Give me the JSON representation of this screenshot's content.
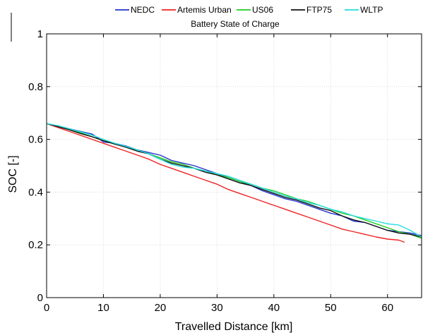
{
  "chart_data": {
    "type": "line",
    "title": "Battery State of Charge",
    "xlabel": "Travelled Distance [km]",
    "ylabel": "SOC [-]",
    "xlim": [
      0,
      66
    ],
    "ylim": [
      0,
      1
    ],
    "xticks": [
      "0",
      "10",
      "20",
      "30",
      "40",
      "50",
      "60"
    ],
    "yticks": [
      "0",
      "0.2",
      "0.4",
      "0.6",
      "0.8",
      "1"
    ],
    "xtick_values": [
      0,
      10,
      20,
      30,
      40,
      50,
      60
    ],
    "ytick_values": [
      0,
      0.2,
      0.4,
      0.6,
      0.8,
      1
    ],
    "grid": true,
    "legend_position": "top",
    "series": [
      {
        "name": "NEDC",
        "color": "#2233cc",
        "x": [
          0,
          2,
          4,
          6,
          8,
          10,
          12,
          14,
          16,
          18,
          20,
          22,
          24,
          26,
          28,
          30,
          32,
          34,
          36,
          38,
          40,
          42,
          44,
          46,
          48,
          50,
          52,
          54,
          56,
          58,
          60,
          62,
          64,
          66
        ],
        "y": [
          0.66,
          0.65,
          0.64,
          0.63,
          0.62,
          0.59,
          0.585,
          0.575,
          0.56,
          0.55,
          0.54,
          0.52,
          0.51,
          0.5,
          0.485,
          0.47,
          0.455,
          0.44,
          0.425,
          0.405,
          0.39,
          0.375,
          0.365,
          0.35,
          0.335,
          0.32,
          0.31,
          0.29,
          0.285,
          0.27,
          0.255,
          0.25,
          0.245,
          0.235
        ]
      },
      {
        "name": "Artemis Urban",
        "color": "#ee2222",
        "x": [
          0,
          2,
          4,
          6,
          8,
          10,
          12,
          14,
          16,
          18,
          20,
          22,
          24,
          26,
          28,
          30,
          32,
          34,
          36,
          38,
          40,
          42,
          44,
          46,
          48,
          50,
          52,
          54,
          56,
          58,
          60,
          62,
          63
        ],
        "y": [
          0.66,
          0.645,
          0.63,
          0.615,
          0.6,
          0.585,
          0.57,
          0.555,
          0.54,
          0.525,
          0.505,
          0.49,
          0.475,
          0.46,
          0.445,
          0.43,
          0.41,
          0.395,
          0.38,
          0.365,
          0.35,
          0.335,
          0.32,
          0.305,
          0.29,
          0.275,
          0.26,
          0.25,
          0.24,
          0.23,
          0.222,
          0.218,
          0.21
        ]
      },
      {
        "name": "US06",
        "color": "#22cc22",
        "x": [
          0,
          2,
          4,
          6,
          8,
          10,
          12,
          14,
          16,
          18,
          20,
          22,
          24,
          26,
          28,
          30,
          32,
          34,
          36,
          38,
          40,
          42,
          44,
          46,
          48,
          50,
          52,
          54,
          56,
          58,
          60,
          62,
          64,
          66
        ],
        "y": [
          0.66,
          0.65,
          0.64,
          0.625,
          0.61,
          0.595,
          0.585,
          0.57,
          0.56,
          0.545,
          0.53,
          0.515,
          0.505,
          0.49,
          0.48,
          0.465,
          0.455,
          0.44,
          0.43,
          0.415,
          0.405,
          0.39,
          0.375,
          0.365,
          0.35,
          0.335,
          0.32,
          0.31,
          0.295,
          0.28,
          0.265,
          0.25,
          0.24,
          0.225
        ]
      },
      {
        "name": "FTP75",
        "color": "#111111",
        "x": [
          0,
          2,
          4,
          6,
          8,
          10,
          12,
          14,
          16,
          18,
          20,
          22,
          24,
          26,
          28,
          30,
          32,
          34,
          36,
          38,
          40,
          42,
          44,
          46,
          48,
          50,
          52,
          54,
          56,
          58,
          60,
          62,
          64,
          66
        ],
        "y": [
          0.66,
          0.648,
          0.636,
          0.622,
          0.61,
          0.595,
          0.582,
          0.57,
          0.555,
          0.545,
          0.525,
          0.51,
          0.5,
          0.49,
          0.475,
          0.465,
          0.45,
          0.435,
          0.425,
          0.41,
          0.395,
          0.38,
          0.37,
          0.355,
          0.34,
          0.33,
          0.31,
          0.295,
          0.285,
          0.27,
          0.255,
          0.245,
          0.24,
          0.23
        ]
      },
      {
        "name": "WLTP",
        "color": "#22dddd",
        "x": [
          0,
          2,
          4,
          6,
          8,
          10,
          12,
          14,
          16,
          18,
          20,
          22,
          24,
          26,
          28,
          30,
          32,
          34,
          36,
          38,
          40,
          42,
          44,
          46,
          48,
          50,
          52,
          54,
          56,
          58,
          60,
          62,
          64,
          66
        ],
        "y": [
          0.66,
          0.652,
          0.64,
          0.628,
          0.616,
          0.6,
          0.585,
          0.573,
          0.56,
          0.545,
          0.525,
          0.505,
          0.495,
          0.49,
          0.48,
          0.47,
          0.46,
          0.445,
          0.43,
          0.415,
          0.4,
          0.385,
          0.375,
          0.36,
          0.35,
          0.335,
          0.325,
          0.31,
          0.3,
          0.29,
          0.28,
          0.275,
          0.255,
          0.23
        ]
      }
    ]
  }
}
